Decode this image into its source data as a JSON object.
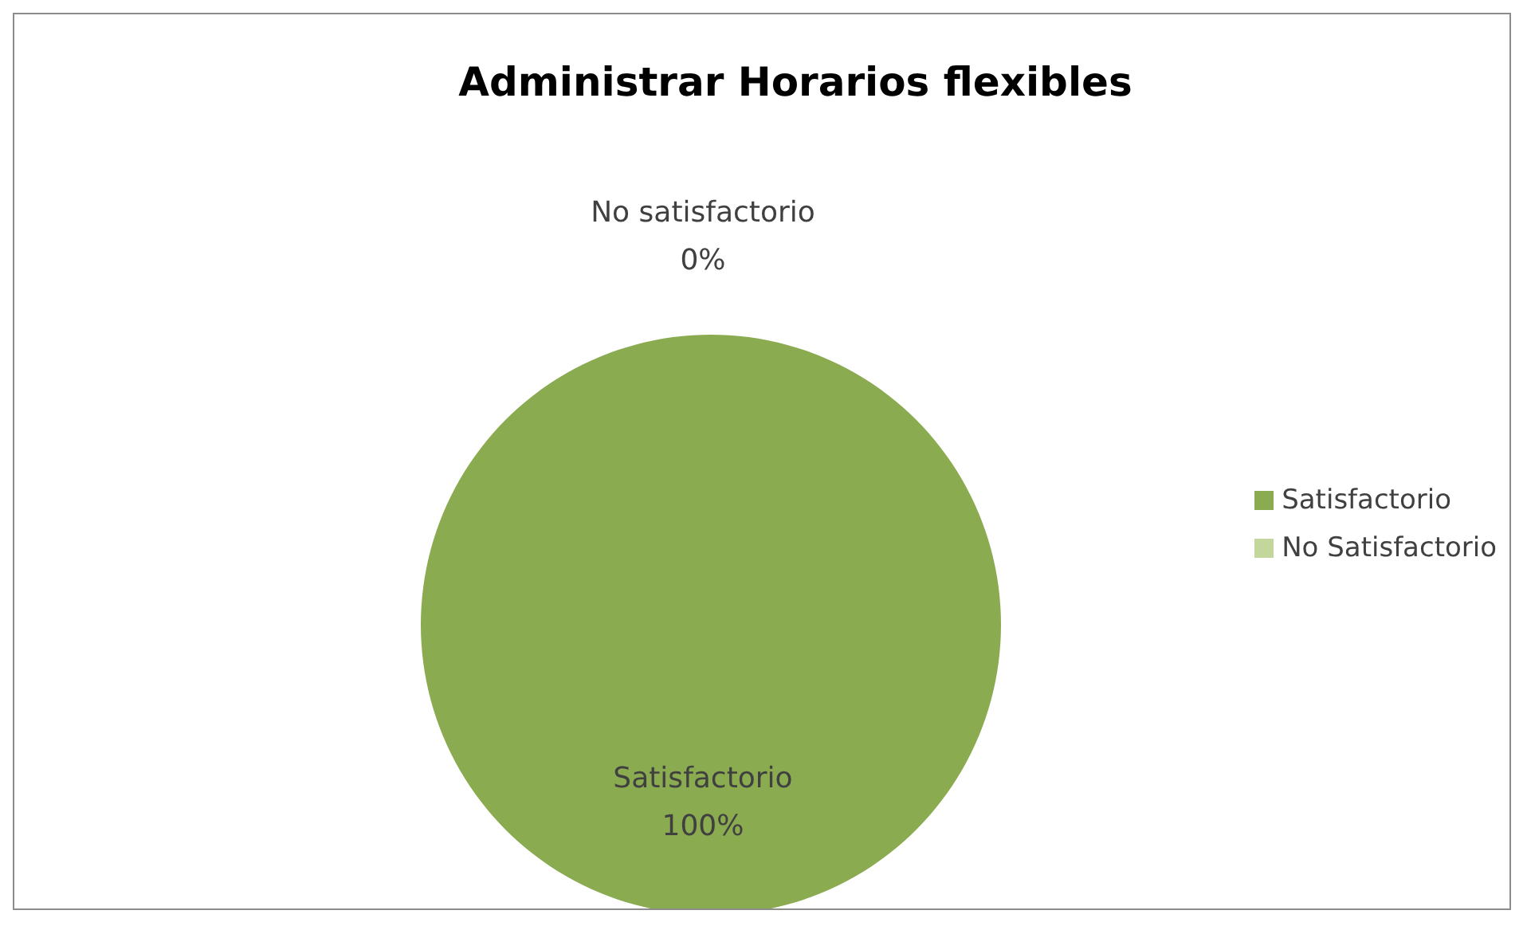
{
  "chart_data": {
    "type": "pie",
    "title": "Administrar Horarios flexibles",
    "categories": [
      "Satisfactorio",
      "No Satisfactorio"
    ],
    "values": [
      100,
      0
    ],
    "colors": [
      "#8aab50",
      "#c3d69b"
    ],
    "value_labels": [
      "100%",
      "0%"
    ],
    "annotations": [
      "Satisfactorio",
      "No satisfactorio"
    ],
    "legend": "right"
  }
}
